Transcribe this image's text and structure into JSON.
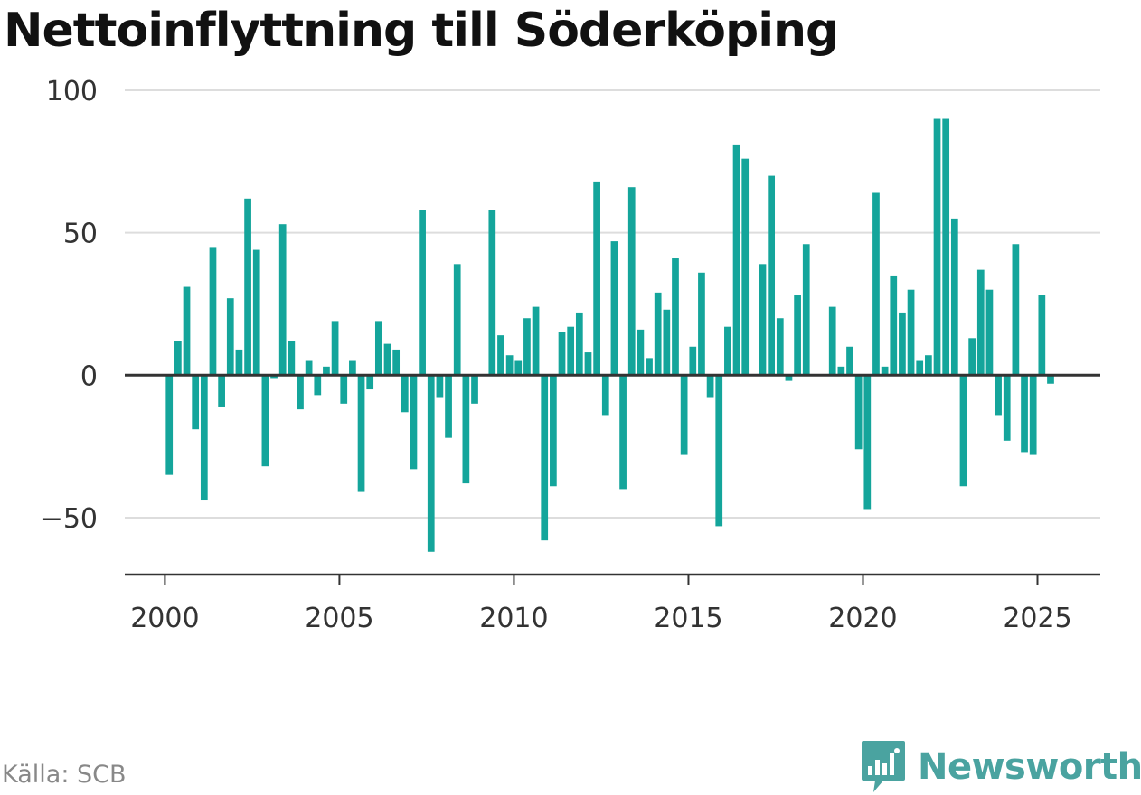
{
  "title": "Nettoinflyttning till Söderköping",
  "source": "Källa: SCB",
  "brand": {
    "name": "Newsworthy",
    "icon": "newsworthy-logo-icon",
    "color": "#4aa3a0"
  },
  "colors": {
    "bar": "#14a59b",
    "zero_line": "#333333",
    "grid": "#dddddd",
    "axis": "#333333"
  },
  "chart_data": {
    "type": "bar",
    "title": "Nettoinflyttning till Söderköping",
    "xlabel": "",
    "ylabel": "",
    "ylim": [
      -70,
      100
    ],
    "xlim": [
      1998.85,
      2026.8
    ],
    "yticks": [
      100,
      50,
      0,
      -50
    ],
    "ytick_labels": [
      "100",
      "50",
      "0",
      "−50"
    ],
    "xticks": [
      2000,
      2005,
      2010,
      2015,
      2020,
      2025
    ],
    "xtick_labels": [
      "2000",
      "2005",
      "2010",
      "2015",
      "2020",
      "2025"
    ],
    "grid": true,
    "bar_width_years": 0.2,
    "x": [
      2000.125,
      2000.375,
      2000.625,
      2000.875,
      2001.125,
      2001.375,
      2001.625,
      2001.875,
      2002.125,
      2002.375,
      2002.625,
      2002.875,
      2003.125,
      2003.375,
      2003.625,
      2003.875,
      2004.125,
      2004.375,
      2004.625,
      2004.875,
      2005.125,
      2005.375,
      2005.625,
      2005.875,
      2006.125,
      2006.375,
      2006.625,
      2006.875,
      2007.125,
      2007.375,
      2007.625,
      2007.875,
      2008.125,
      2008.375,
      2008.625,
      2008.875,
      2009.125,
      2009.375,
      2009.625,
      2009.875,
      2010.125,
      2010.375,
      2010.625,
      2010.875,
      2011.125,
      2011.375,
      2011.625,
      2011.875,
      2012.125,
      2012.375,
      2012.625,
      2012.875,
      2013.125,
      2013.375,
      2013.625,
      2013.875,
      2014.125,
      2014.375,
      2014.625,
      2014.875,
      2015.125,
      2015.375,
      2015.625,
      2015.875,
      2016.125,
      2016.375,
      2016.625,
      2016.875,
      2017.125,
      2017.375,
      2017.625,
      2017.875,
      2018.125,
      2018.375,
      2018.625,
      2018.875,
      2019.125,
      2019.375,
      2019.625,
      2019.875,
      2020.125,
      2020.375,
      2020.625,
      2020.875,
      2021.125,
      2021.375,
      2021.625,
      2021.875,
      2022.125,
      2022.375,
      2022.625,
      2022.875,
      2023.125,
      2023.375,
      2023.625,
      2023.875,
      2024.125,
      2024.375,
      2024.625,
      2024.875,
      2025.125,
      2025.375
    ],
    "values": [
      -35,
      12,
      31,
      -19,
      -44,
      45,
      -11,
      27,
      9,
      62,
      44,
      -32,
      -1,
      53,
      12,
      -12,
      5,
      -7,
      3,
      19,
      -10,
      5,
      -41,
      -5,
      19,
      11,
      9,
      -13,
      -33,
      58,
      -62,
      -8,
      -22,
      39,
      -38,
      -10,
      0,
      58,
      14,
      7,
      5,
      20,
      24,
      -58,
      -39,
      15,
      17,
      22,
      8,
      68,
      -14,
      47,
      -40,
      66,
      16,
      6,
      29,
      23,
      41,
      -28,
      10,
      36,
      -8,
      -53,
      17,
      81,
      76,
      0,
      39,
      70,
      20,
      -2,
      28,
      46,
      0,
      0,
      24,
      3,
      10,
      -26,
      -47,
      64,
      3,
      35,
      22,
      30,
      5,
      7,
      90,
      90,
      55,
      -39,
      13,
      37,
      30,
      -14,
      -23,
      46,
      -27,
      -28,
      28,
      -3
    ]
  }
}
